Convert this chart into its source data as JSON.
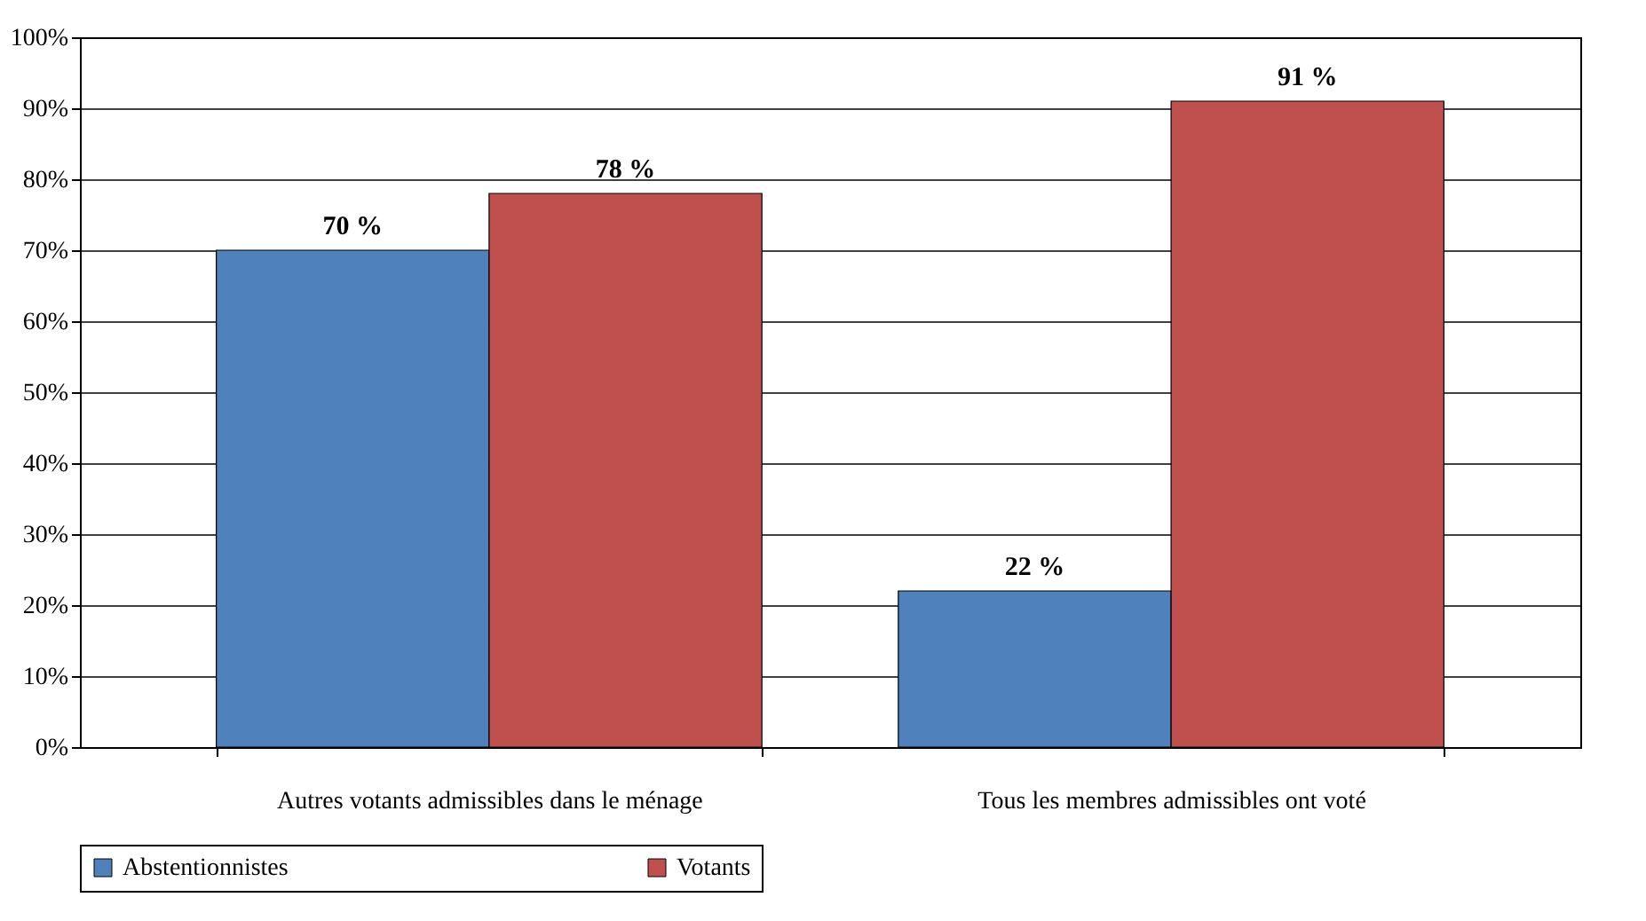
{
  "chart_data": {
    "type": "bar",
    "categories": [
      "Autres votants admissibles dans le ménage",
      "Tous les membres admissibles ont voté"
    ],
    "series": [
      {
        "name": "Abstentionnistes",
        "color": "#4f81bd",
        "values": [
          70,
          22
        ],
        "value_labels": [
          "70 %",
          "22 %"
        ]
      },
      {
        "name": "Votants",
        "color": "#c0504d",
        "values": [
          78,
          91
        ],
        "value_labels": [
          "78 %",
          "91 %"
        ]
      }
    ],
    "ylim": [
      0,
      100
    ],
    "yticks": [
      {
        "value": 0,
        "label": "0%"
      },
      {
        "value": 10,
        "label": "10%"
      },
      {
        "value": 20,
        "label": "20%"
      },
      {
        "value": 30,
        "label": "30%"
      },
      {
        "value": 40,
        "label": "40%"
      },
      {
        "value": 50,
        "label": "50%"
      },
      {
        "value": 60,
        "label": "60%"
      },
      {
        "value": 70,
        "label": "70%"
      },
      {
        "value": 80,
        "label": "80%"
      },
      {
        "value": 90,
        "label": "90%"
      },
      {
        "value": 100,
        "label": "100%"
      }
    ],
    "grid": "y",
    "legend": "bottom"
  }
}
